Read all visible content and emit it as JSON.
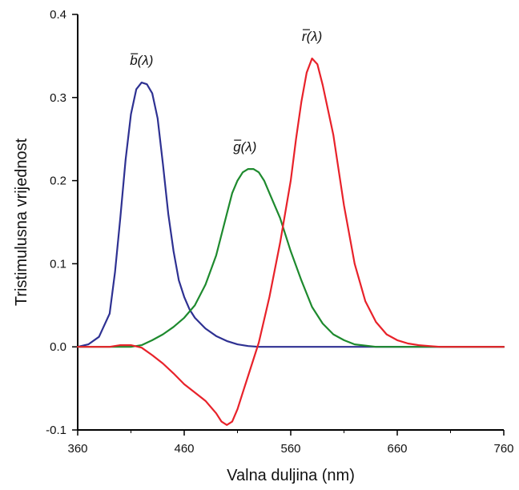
{
  "chart_data": {
    "type": "line",
    "xlabel": "Valna duljina (nm)",
    "ylabel": "Tristimulusna vrijednost",
    "xlim": [
      360,
      760
    ],
    "ylim": [
      -0.1,
      0.4
    ],
    "xticks": [
      360,
      460,
      560,
      660,
      760
    ],
    "xtick_labels": [
      "360",
      "460",
      "560",
      "660",
      "760"
    ],
    "yticks": [
      -0.1,
      0.0,
      0.1,
      0.2,
      0.3,
      0.4
    ],
    "ytick_labels": [
      "-0.1",
      "0.0",
      "0.1",
      "0.2",
      "0.3",
      "0.4"
    ],
    "grid": false,
    "series": [
      {
        "name": "b̄(λ)",
        "color": "#2e3192",
        "x": [
          360,
          370,
          380,
          390,
          395,
          400,
          405,
          410,
          415,
          420,
          425,
          430,
          435,
          440,
          445,
          450,
          455,
          460,
          465,
          470,
          480,
          490,
          500,
          510,
          520,
          530,
          540,
          560,
          600,
          660,
          700,
          760
        ],
        "y": [
          0.0,
          0.003,
          0.012,
          0.04,
          0.09,
          0.155,
          0.225,
          0.28,
          0.31,
          0.318,
          0.316,
          0.305,
          0.275,
          0.22,
          0.16,
          0.115,
          0.08,
          0.06,
          0.045,
          0.035,
          0.022,
          0.013,
          0.007,
          0.003,
          0.001,
          0.0,
          0.0,
          0.0,
          0.0,
          0.0,
          0.0,
          0.0
        ]
      },
      {
        "name": "ḡ(λ)",
        "color": "#1e8a2e",
        "x": [
          360,
          400,
          410,
          420,
          430,
          440,
          450,
          460,
          470,
          480,
          490,
          500,
          505,
          510,
          515,
          520,
          525,
          530,
          535,
          540,
          550,
          560,
          570,
          580,
          590,
          600,
          610,
          620,
          640,
          660,
          760
        ],
        "y": [
          0.0,
          0.0,
          0.0,
          0.002,
          0.008,
          0.015,
          0.024,
          0.035,
          0.05,
          0.075,
          0.11,
          0.16,
          0.185,
          0.2,
          0.21,
          0.214,
          0.214,
          0.21,
          0.2,
          0.185,
          0.155,
          0.115,
          0.08,
          0.048,
          0.028,
          0.015,
          0.008,
          0.003,
          0.0,
          0.0,
          0.0
        ]
      },
      {
        "name": "r̄(λ)",
        "color": "#e8222a",
        "x": [
          360,
          390,
          400,
          410,
          420,
          430,
          440,
          450,
          460,
          470,
          480,
          490,
          495,
          500,
          505,
          510,
          515,
          520,
          530,
          540,
          550,
          560,
          565,
          570,
          575,
          580,
          585,
          590,
          600,
          610,
          620,
          630,
          640,
          650,
          660,
          670,
          680,
          690,
          700,
          760
        ],
        "y": [
          0.0,
          0.0,
          0.002,
          0.002,
          -0.001,
          -0.01,
          -0.02,
          -0.032,
          -0.045,
          -0.055,
          -0.065,
          -0.08,
          -0.09,
          -0.094,
          -0.09,
          -0.075,
          -0.055,
          -0.035,
          0.005,
          0.06,
          0.125,
          0.2,
          0.25,
          0.295,
          0.33,
          0.347,
          0.34,
          0.315,
          0.255,
          0.17,
          0.1,
          0.055,
          0.03,
          0.015,
          0.008,
          0.004,
          0.002,
          0.001,
          0.0,
          0.0
        ]
      }
    ],
    "labels": [
      {
        "text": "b(λ)",
        "series": 0
      },
      {
        "text": "g(λ)",
        "series": 1
      },
      {
        "text": "r(λ)",
        "series": 2
      }
    ]
  }
}
